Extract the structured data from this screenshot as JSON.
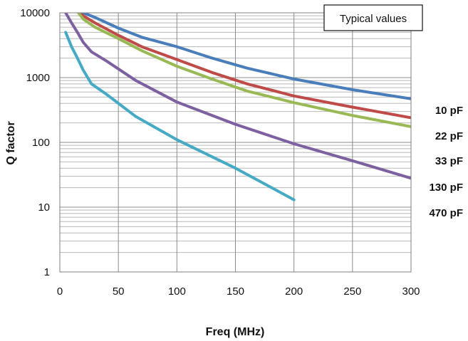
{
  "chart_data": {
    "type": "line",
    "title": "",
    "xlabel": "Freq (MHz)",
    "ylabel": "Q factor",
    "xlim": [
      0,
      300
    ],
    "ylim": [
      1,
      10000
    ],
    "y_scale": "log",
    "x_ticks": [
      0,
      50,
      100,
      150,
      200,
      250,
      300
    ],
    "y_ticks": [
      1,
      10,
      100,
      1000,
      10000
    ],
    "x_tick_labels": [
      "0",
      "50",
      "100",
      "150",
      "200",
      "250",
      "300"
    ],
    "y_tick_labels": [
      "1",
      "10",
      "100",
      "1000",
      "10000"
    ],
    "grid": true,
    "annotation": "Typical values",
    "series": [
      {
        "name": "10 pF",
        "color": "#4a7ebb",
        "x": [
          10,
          20,
          30,
          50,
          70,
          100,
          130,
          160,
          200,
          250,
          300
        ],
        "y": [
          12000,
          10000,
          8500,
          5800,
          4200,
          3000,
          2000,
          1400,
          950,
          650,
          470
        ]
      },
      {
        "name": "22 pF",
        "color": "#be4b48",
        "x": [
          10,
          20,
          30,
          50,
          70,
          100,
          130,
          160,
          200,
          250,
          300
        ],
        "y": [
          12000,
          9000,
          7000,
          4500,
          3000,
          1900,
          1200,
          800,
          520,
          350,
          240
        ]
      },
      {
        "name": "33 pF",
        "color": "#98b954",
        "x": [
          15,
          20,
          30,
          50,
          70,
          100,
          130,
          160,
          200,
          250,
          300
        ],
        "y": [
          10500,
          8000,
          6000,
          4000,
          2600,
          1500,
          950,
          620,
          410,
          260,
          175
        ]
      },
      {
        "name": "130 pF",
        "color": "#7d60a0",
        "x": [
          5,
          10,
          15,
          20,
          27,
          40,
          65,
          100,
          150,
          200,
          250,
          300
        ],
        "y": [
          10000,
          7000,
          5000,
          3500,
          2500,
          1800,
          900,
          420,
          190,
          95,
          52,
          28
        ]
      },
      {
        "name": "470 pF",
        "color": "#46aac5",
        "x": [
          5,
          10,
          15,
          20,
          27,
          40,
          65,
          100,
          150,
          200
        ],
        "y": [
          5000,
          3000,
          2000,
          1300,
          800,
          550,
          250,
          110,
          40,
          13
        ]
      }
    ]
  }
}
